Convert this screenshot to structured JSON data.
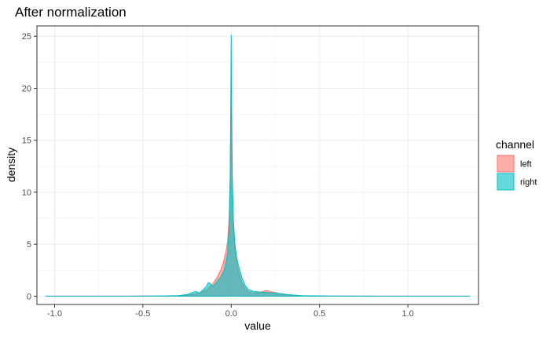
{
  "chart_data": {
    "type": "area",
    "title": "After normalization",
    "xlabel": "value",
    "ylabel": "density",
    "xlim": [
      -1.1,
      1.4
    ],
    "ylim": [
      -0.8,
      26.0
    ],
    "x_ticks": [
      -1.0,
      -0.5,
      0.0,
      0.5,
      1.0
    ],
    "x_tick_labels": [
      "-1.0",
      "-0.5",
      "0.0",
      "0.5",
      "1.0"
    ],
    "y_ticks": [
      0,
      5,
      10,
      15,
      20,
      25
    ],
    "y_tick_labels": [
      "0",
      "5",
      "10",
      "15",
      "20",
      "25"
    ],
    "grid": true,
    "legend": {
      "title": "channel",
      "placement": "right"
    },
    "series": [
      {
        "name": "left",
        "fill": "#F8766D",
        "stroke": "#F8766D",
        "x": [
          -1.05,
          -0.6,
          -0.4,
          -0.3,
          -0.25,
          -0.2,
          -0.17,
          -0.14,
          -0.12,
          -0.1,
          -0.08,
          -0.06,
          -0.045,
          -0.03,
          -0.02,
          -0.012,
          -0.006,
          -0.002,
          0.0,
          0.002,
          0.006,
          0.012,
          0.02,
          0.03,
          0.045,
          0.06,
          0.08,
          0.1,
          0.13,
          0.16,
          0.19,
          0.2,
          0.22,
          0.25,
          0.28,
          0.32,
          0.4,
          0.6,
          1.0,
          1.35
        ],
        "y": [
          0.0,
          0.0,
          0.02,
          0.05,
          0.1,
          0.2,
          0.35,
          0.6,
          0.9,
          1.3,
          1.8,
          2.5,
          3.2,
          4.3,
          5.3,
          7.5,
          11.5,
          17.0,
          19.5,
          16.5,
          11.0,
          7.0,
          4.6,
          3.2,
          2.1,
          1.3,
          0.7,
          0.4,
          0.3,
          0.35,
          0.5,
          0.55,
          0.45,
          0.35,
          0.2,
          0.1,
          0.03,
          0.01,
          0.0,
          0.0
        ]
      },
      {
        "name": "right",
        "fill": "#00BFC4",
        "stroke": "#00BFC4",
        "x": [
          -1.05,
          -0.6,
          -0.4,
          -0.3,
          -0.25,
          -0.22,
          -0.2,
          -0.18,
          -0.16,
          -0.14,
          -0.13,
          -0.12,
          -0.11,
          -0.1,
          -0.08,
          -0.06,
          -0.04,
          -0.03,
          -0.02,
          -0.012,
          -0.006,
          -0.002,
          0.0,
          0.002,
          0.006,
          0.012,
          0.02,
          0.03,
          0.045,
          0.06,
          0.08,
          0.1,
          0.13,
          0.16,
          0.2,
          0.24,
          0.28,
          0.32,
          0.4,
          0.6,
          1.0,
          1.35
        ],
        "y": [
          0.0,
          0.0,
          0.02,
          0.05,
          0.15,
          0.35,
          0.45,
          0.3,
          0.6,
          0.95,
          1.3,
          1.25,
          1.0,
          1.0,
          1.4,
          1.8,
          2.5,
          3.2,
          4.2,
          6.5,
          11.0,
          20.0,
          25.1,
          19.0,
          11.5,
          7.5,
          5.2,
          3.8,
          2.7,
          1.8,
          1.0,
          0.6,
          0.45,
          0.4,
          0.35,
          0.3,
          0.25,
          0.15,
          0.05,
          0.01,
          0.0,
          0.0
        ]
      }
    ]
  }
}
